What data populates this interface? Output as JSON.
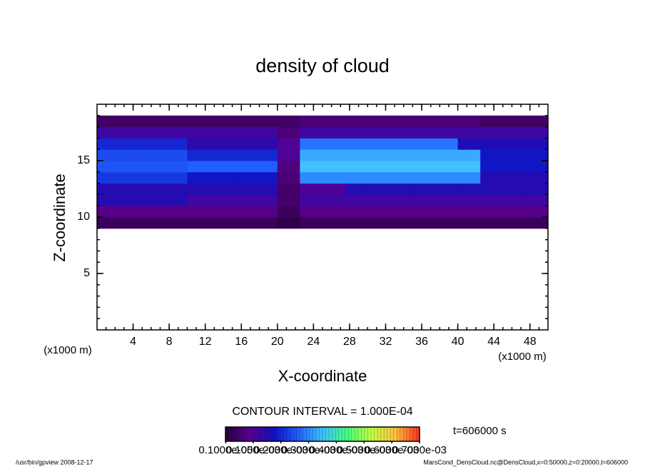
{
  "chart_data": {
    "type": "heatmap",
    "title": "density of cloud",
    "xlabel": "X-coordinate",
    "ylabel": "Z-coordinate",
    "x_unit": "(x1000 m)",
    "y_unit": "(x1000 m)",
    "xlim": [
      0,
      50
    ],
    "ylim": [
      0,
      20
    ],
    "xticks": [
      4,
      8,
      12,
      16,
      20,
      24,
      28,
      32,
      36,
      40,
      44,
      48
    ],
    "yticks": [
      5,
      10,
      15
    ],
    "xminor": 1,
    "yminor": 1,
    "x": [
      1.25,
      3.75,
      6.25,
      8.75,
      11.25,
      13.75,
      16.25,
      18.75,
      21.25,
      23.75,
      26.25,
      28.75,
      31.25,
      33.75,
      36.25,
      38.75,
      41.25,
      43.75,
      46.25,
      48.75
    ],
    "z": [
      9.5,
      10.5,
      11.5,
      12.5,
      13.5,
      14.5,
      15.5,
      16.5,
      17.5,
      18.5
    ],
    "values": [
      [
        3e-05,
        3e-05,
        3e-05,
        3e-05,
        3e-05,
        3e-05,
        3e-05,
        3e-05,
        1e-05,
        3e-05,
        3e-05,
        3e-05,
        3e-05,
        3e-05,
        3e-05,
        3e-05,
        3e-05,
        3e-05,
        3e-05,
        3e-05
      ],
      [
        8e-05,
        8e-05,
        8e-05,
        8e-05,
        8e-05,
        8e-05,
        8e-05,
        8e-05,
        3e-05,
        8e-05,
        8e-05,
        8e-05,
        8e-05,
        8e-05,
        8e-05,
        8e-05,
        8e-05,
        8e-05,
        8e-05,
        8e-05
      ],
      [
        0.00015,
        0.00015,
        0.00015,
        0.00015,
        0.00012,
        0.00012,
        0.00012,
        0.00012,
        5e-05,
        0.00012,
        0.00012,
        0.00012,
        0.00012,
        0.00012,
        0.00012,
        0.00012,
        0.00012,
        0.00012,
        0.00012,
        0.00012
      ],
      [
        0.00015,
        0.00015,
        0.00015,
        0.00015,
        0.00015,
        0.00015,
        0.00015,
        0.00015,
        5e-05,
        0.0001,
        0.0001,
        0.00015,
        0.00015,
        0.00015,
        0.00015,
        0.00015,
        0.00015,
        0.00015,
        0.00015,
        0.00015
      ],
      [
        0.00022,
        0.00022,
        0.00022,
        0.00022,
        0.00018,
        0.00018,
        0.00018,
        0.00018,
        6e-05,
        0.0003,
        0.0003,
        0.0003,
        0.0003,
        0.0003,
        0.0003,
        0.0003,
        0.0003,
        0.00015,
        0.00015,
        0.00015
      ],
      [
        0.00025,
        0.00025,
        0.00025,
        0.00025,
        0.00026,
        0.00026,
        0.00026,
        0.00026,
        7e-05,
        0.00035,
        0.00035,
        0.00035,
        0.00035,
        0.00035,
        0.00035,
        0.00035,
        0.00035,
        0.00018,
        0.00018,
        0.00018
      ],
      [
        0.00024,
        0.00024,
        0.00024,
        0.00024,
        0.0002,
        0.0002,
        0.0002,
        0.0002,
        0.0001,
        0.00033,
        0.00033,
        0.00033,
        0.00033,
        0.00033,
        0.00033,
        0.00033,
        0.00033,
        0.00018,
        0.00018,
        0.00018
      ],
      [
        0.0002,
        0.0002,
        0.0002,
        0.0002,
        0.00014,
        0.00014,
        0.00014,
        0.00014,
        0.0001,
        0.00028,
        0.00028,
        0.00028,
        0.00028,
        0.00028,
        0.00028,
        0.00028,
        0.00016,
        0.00016,
        0.00016,
        0.00016
      ],
      [
        0.00012,
        0.00012,
        0.00012,
        0.00012,
        0.00012,
        0.00012,
        0.00012,
        0.00012,
        6e-05,
        0.00012,
        0.00012,
        0.00012,
        0.00012,
        0.00012,
        0.00012,
        0.00012,
        0.00012,
        0.00012,
        0.00012,
        0.00012
      ],
      [
        4e-05,
        4e-05,
        4e-05,
        4e-05,
        4e-05,
        4e-05,
        4e-05,
        4e-05,
        4e-05,
        6e-05,
        6e-05,
        6e-05,
        6e-05,
        6e-05,
        6e-05,
        6e-05,
        6e-05,
        4e-05,
        4e-05,
        4e-05
      ]
    ],
    "clim": [
      0,
      0.0007
    ],
    "colormap": [
      "#2a0040",
      "#5a0090",
      "#1010c0",
      "#2060ff",
      "#40c0ff",
      "#40ff80",
      "#c0ff40",
      "#ffc040",
      "#ff3020"
    ],
    "colorbar_ticks": [
      {
        "value": 1e-06,
        "label": "0.1000e-05"
      },
      {
        "value": 0.0001,
        "label": "0.1000e-03"
      },
      {
        "value": 0.0002,
        "label": "0.2000e-03"
      },
      {
        "value": 0.0003,
        "label": "0.3000e-03"
      },
      {
        "value": 0.0004,
        "label": "0.4000e-03"
      },
      {
        "value": 0.0005,
        "label": "0.5000e-03"
      },
      {
        "value": 0.0006,
        "label": "0.6000e-03"
      },
      {
        "value": 0.0007,
        "label": "0.7000e-03"
      }
    ],
    "contour_interval": "CONTOUR INTERVAL = 1.000E-04",
    "time_label": "t=606000 s",
    "footer_left": "/usr/bin/gpview  2008-12-17",
    "footer_right": "MarsCond_DensCloud.nc@DensCloud,x=0:50000,z=0:20000,t=606000"
  }
}
